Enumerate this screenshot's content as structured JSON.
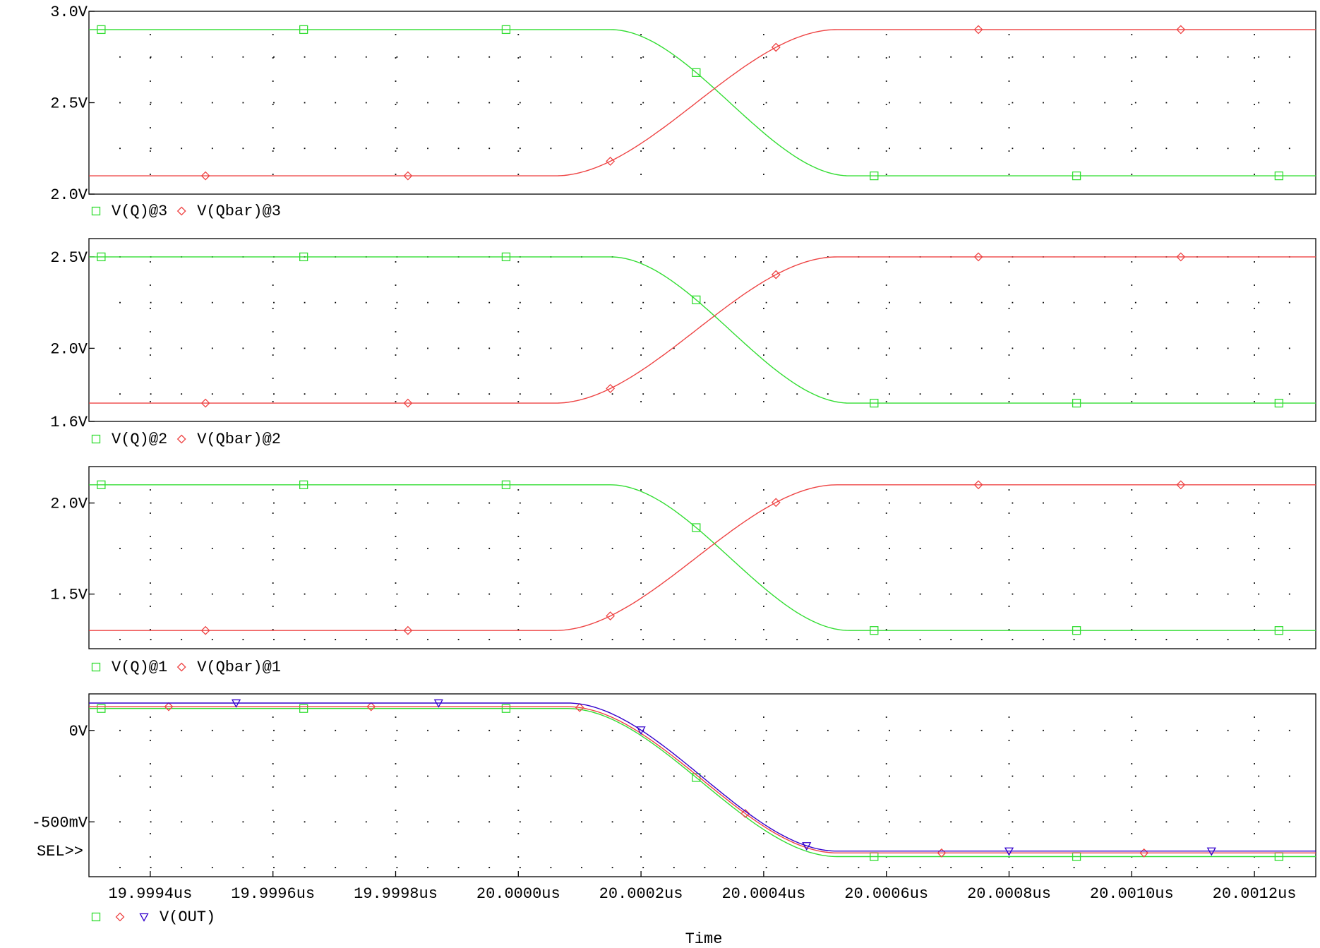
{
  "colors": {
    "green": "#33dd33",
    "red": "#ee4444",
    "blue": "#3300cc",
    "grid": "#000000",
    "frame": "#000000"
  },
  "chart_data": [
    {
      "type": "line",
      "ylim": [
        2.0,
        3.0
      ],
      "yticks": [
        {
          "v": 3.0,
          "label": "3.0V"
        },
        {
          "v": 2.5,
          "label": "2.5V"
        },
        {
          "v": 2.0,
          "label": "2.0V"
        }
      ],
      "ydots": [
        2.0,
        2.25,
        2.5,
        2.75,
        3.0
      ],
      "legend": [
        {
          "symbol": "square",
          "color": "green",
          "text": "V(Q)@3"
        },
        {
          "symbol": "diamond",
          "color": "red",
          "text": "V(Qbar)@3"
        }
      ],
      "series": [
        {
          "name": "V(Q)@3",
          "color": "green",
          "marker": "square",
          "high": 2.9,
          "low": 2.1,
          "direction": "fall",
          "t0": 20.00015,
          "t1": 20.00054,
          "markers_at": [
            19.99932,
            19.99965,
            19.99998,
            20.00029,
            20.00058,
            20.00091,
            20.00124
          ]
        },
        {
          "name": "V(Qbar)@3",
          "color": "red",
          "marker": "diamond",
          "high": 2.9,
          "low": 2.1,
          "direction": "rise",
          "t0": 20.00006,
          "t1": 20.00052,
          "markers_at": [
            19.99949,
            19.99982,
            20.00015,
            20.00042,
            20.00075,
            20.00108
          ]
        }
      ]
    },
    {
      "type": "line",
      "ylim": [
        1.6,
        2.6
      ],
      "yticks": [
        {
          "v": 2.5,
          "label": "2.5V"
        },
        {
          "v": 2.0,
          "label": "2.0V"
        },
        {
          "v": 1.6,
          "label": "1.6V"
        }
      ],
      "ydots": [
        2.5,
        2.25,
        2.0,
        1.75
      ],
      "legend": [
        {
          "symbol": "square",
          "color": "green",
          "text": "V(Q)@2"
        },
        {
          "symbol": "diamond",
          "color": "red",
          "text": "V(Qbar)@2"
        }
      ],
      "series": [
        {
          "name": "V(Q)@2",
          "color": "green",
          "marker": "square",
          "high": 2.5,
          "low": 1.7,
          "direction": "fall",
          "t0": 20.00015,
          "t1": 20.00054,
          "markers_at": [
            19.99932,
            19.99965,
            19.99998,
            20.00029,
            20.00058,
            20.00091,
            20.00124
          ]
        },
        {
          "name": "V(Qbar)@2",
          "color": "red",
          "marker": "diamond",
          "high": 2.5,
          "low": 1.7,
          "direction": "rise",
          "t0": 20.00006,
          "t1": 20.00052,
          "markers_at": [
            19.99949,
            19.99982,
            20.00015,
            20.00042,
            20.00075,
            20.00108
          ]
        }
      ]
    },
    {
      "type": "line",
      "ylim": [
        1.2,
        2.2
      ],
      "yticks": [
        {
          "v": 2.0,
          "label": "2.0V"
        },
        {
          "v": 1.5,
          "label": "1.5V"
        }
      ],
      "ydots": [
        2.0,
        1.75,
        1.5,
        1.25
      ],
      "legend": [
        {
          "symbol": "square",
          "color": "green",
          "text": "V(Q)@1"
        },
        {
          "symbol": "diamond",
          "color": "red",
          "text": "V(Qbar)@1"
        }
      ],
      "series": [
        {
          "name": "V(Q)@1",
          "color": "green",
          "marker": "square",
          "high": 2.1,
          "low": 1.3,
          "direction": "fall",
          "t0": 20.00015,
          "t1": 20.00054,
          "markers_at": [
            19.99932,
            19.99965,
            19.99998,
            20.00029,
            20.00058,
            20.00091,
            20.00124
          ]
        },
        {
          "name": "V(Qbar)@1",
          "color": "red",
          "marker": "diamond",
          "high": 2.1,
          "low": 1.3,
          "direction": "rise",
          "t0": 20.00006,
          "t1": 20.00052,
          "markers_at": [
            19.99949,
            19.99982,
            20.00015,
            20.00042,
            20.00075,
            20.00108
          ]
        }
      ]
    },
    {
      "type": "line",
      "ylim": [
        -0.8,
        0.2
      ],
      "yticks": [
        {
          "v": 0.0,
          "label": "0V"
        },
        {
          "v": -0.5,
          "label": "-500mV"
        }
      ],
      "ydots": [
        0.0,
        -0.25,
        -0.5,
        -0.75
      ],
      "sel_label": "SEL>>",
      "legend": [
        {
          "symbol": "square",
          "color": "green",
          "text": ""
        },
        {
          "symbol": "diamond",
          "color": "red",
          "text": ""
        },
        {
          "symbol": "triangle",
          "color": "blue",
          "text": "V(OUT)"
        }
      ],
      "series": [
        {
          "name": "",
          "color": "green",
          "marker": "square",
          "high": 0.12,
          "low": -0.69,
          "direction": "fall",
          "t0": 20.00008,
          "t1": 20.00052,
          "markers_at": [
            19.99932,
            19.99965,
            19.99998,
            20.00029,
            20.00058,
            20.00091,
            20.00124
          ]
        },
        {
          "name": "",
          "color": "red",
          "marker": "diamond",
          "high": 0.13,
          "low": -0.67,
          "direction": "fall",
          "t0": 20.00008,
          "t1": 20.00052,
          "markers_at": [
            19.99943,
            19.99976,
            20.0001,
            20.00037,
            20.00069,
            20.00102
          ]
        },
        {
          "name": "V(OUT)",
          "color": "blue",
          "marker": "triangle",
          "high": 0.15,
          "low": -0.66,
          "direction": "fall",
          "t0": 20.00008,
          "t1": 20.00052,
          "markers_at": [
            19.99954,
            19.99987,
            20.0002,
            20.00047,
            20.0008,
            20.00113
          ]
        }
      ]
    }
  ],
  "x_axis": {
    "xlim": [
      19.9993,
      20.0013
    ],
    "ticks": [
      {
        "v": 19.9994,
        "label": "19.9994us"
      },
      {
        "v": 19.9996,
        "label": "19.9996us"
      },
      {
        "v": 19.9998,
        "label": "19.9998us"
      },
      {
        "v": 20.0,
        "label": "20.0000us"
      },
      {
        "v": 20.0002,
        "label": "20.0002us"
      },
      {
        "v": 20.0004,
        "label": "20.0004us"
      },
      {
        "v": 20.0006,
        "label": "20.0006us"
      },
      {
        "v": 20.0008,
        "label": "20.0008us"
      },
      {
        "v": 20.001,
        "label": "20.0010us"
      },
      {
        "v": 20.0012,
        "label": "20.0012us"
      }
    ],
    "title": "Time"
  }
}
